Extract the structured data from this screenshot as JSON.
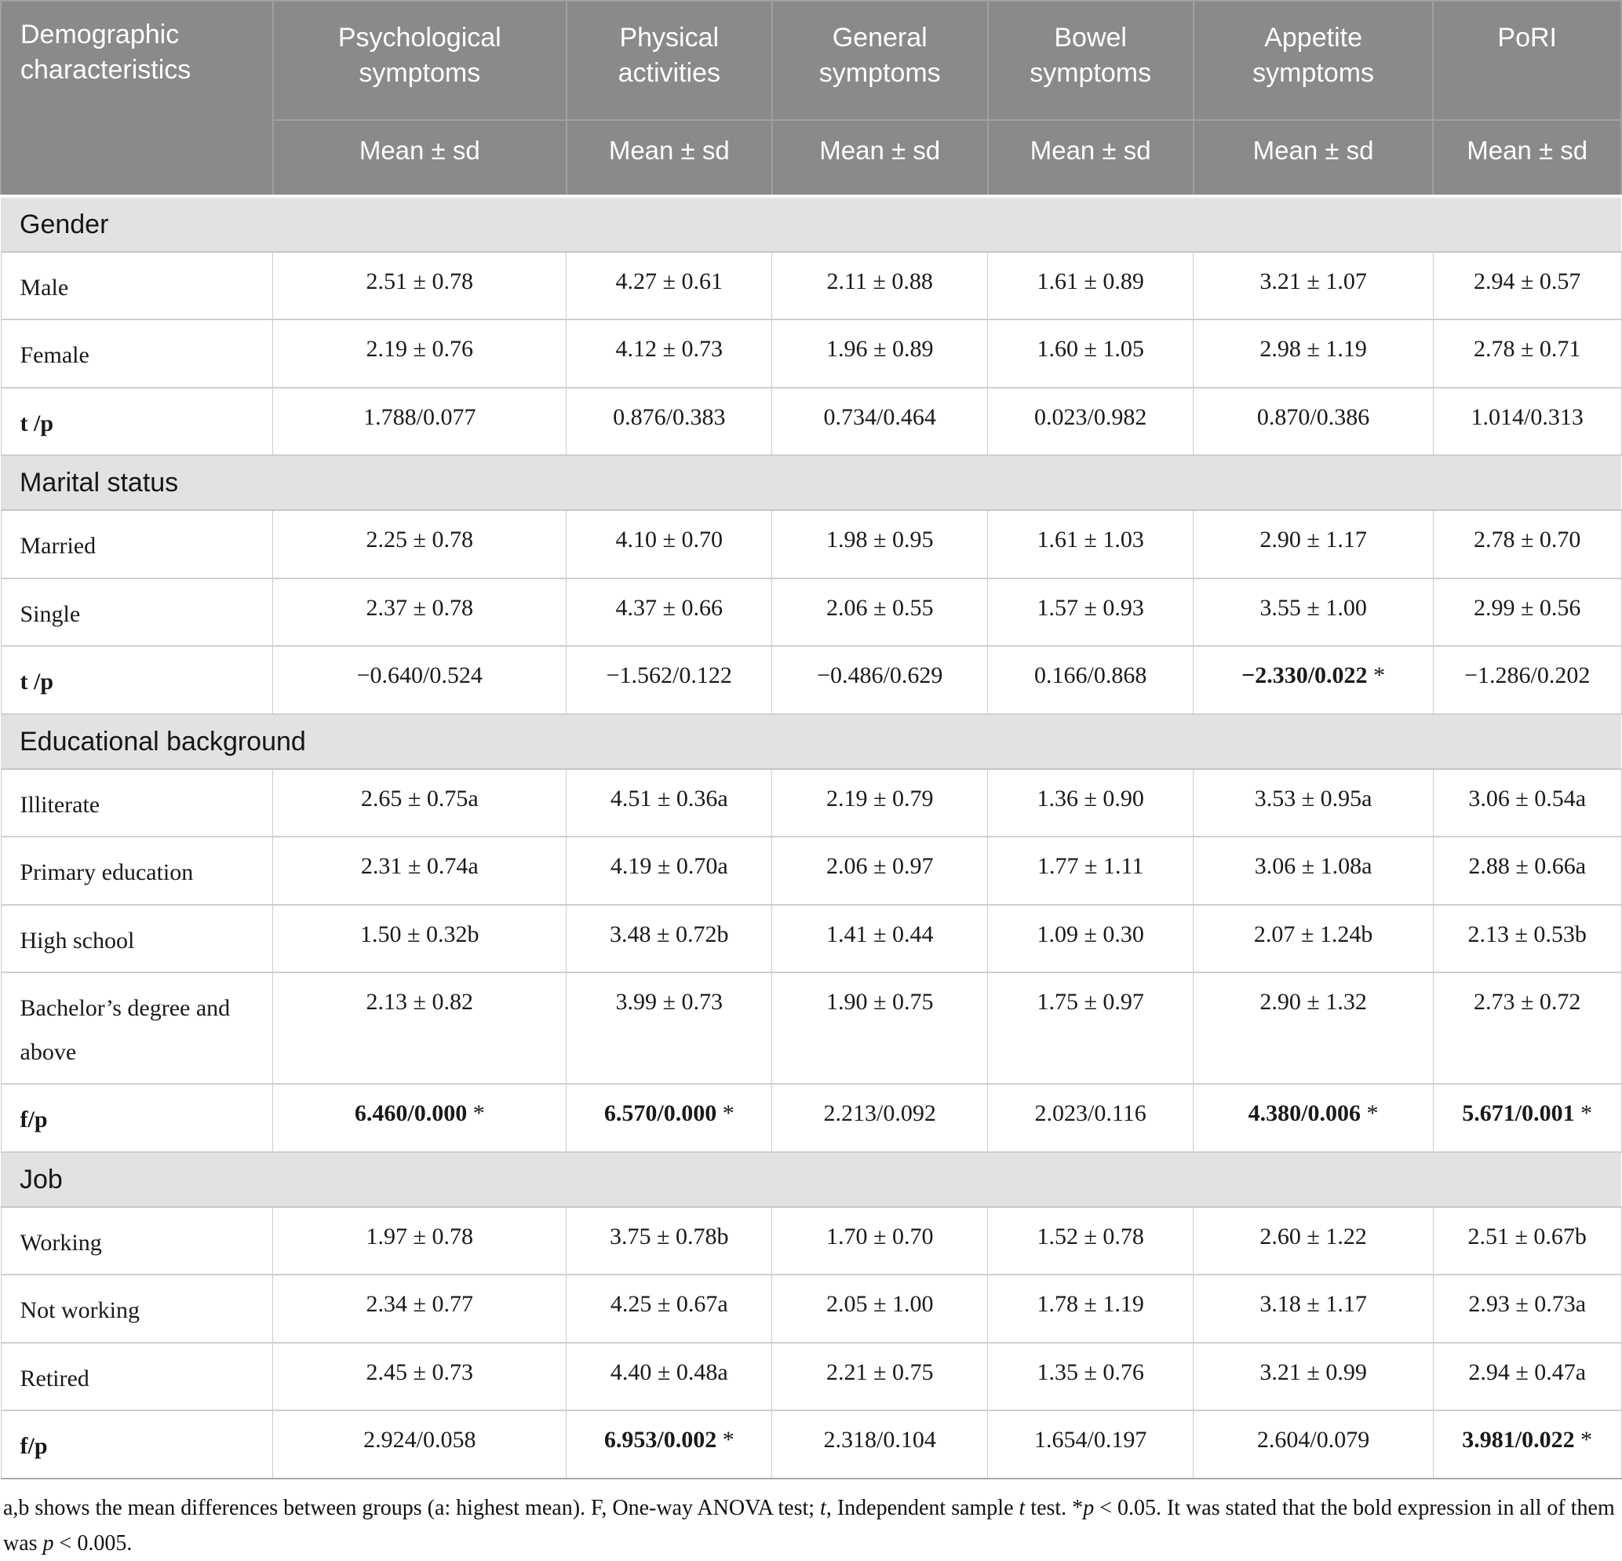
{
  "colors": {
    "header_bg": "#8a8a8a",
    "header_text": "#ffffff",
    "section_bg": "#e2e2e1"
  },
  "header": {
    "row_label": "Demographic characteristics",
    "columns": [
      "Psychological symptoms",
      "Physical activities",
      "General symptoms",
      "Bowel symptoms",
      "Appetite symptoms",
      "PoRI"
    ],
    "mean_sd": "Mean ± sd"
  },
  "sections": [
    {
      "title": "Gender",
      "rows": [
        {
          "label": "Male",
          "values": [
            "2.51 ± 0.78",
            "4.27 ± 0.61",
            "2.11 ± 0.88",
            "1.61 ± 0.89",
            "3.21 ± 1.07",
            "2.94 ± 0.57"
          ]
        },
        {
          "label": "Female",
          "values": [
            "2.19 ± 0.76",
            "4.12 ± 0.73",
            "1.96 ± 0.89",
            "1.60 ± 1.05",
            "2.98 ± 1.19",
            "2.78 ± 0.71"
          ]
        },
        {
          "label": "t /p",
          "label_bold": true,
          "values": [
            "1.788/0.077",
            "0.876/0.383",
            "0.734/0.464",
            "0.023/0.982",
            "0.870/0.386",
            "1.014/0.313"
          ]
        }
      ]
    },
    {
      "title": "Marital status",
      "rows": [
        {
          "label": "Married",
          "values": [
            "2.25 ± 0.78",
            "4.10 ± 0.70",
            "1.98 ± 0.95",
            "1.61 ± 1.03",
            "2.90 ± 1.17",
            "2.78 ± 0.70"
          ]
        },
        {
          "label": "Single",
          "values": [
            "2.37 ± 0.78",
            "4.37 ± 0.66",
            "2.06 ± 0.55",
            "1.57 ± 0.93",
            "3.55 ± 1.00",
            "2.99 ± 0.56"
          ]
        },
        {
          "label": "t /p",
          "label_bold": true,
          "values": [
            "−0.640/0.524",
            "−1.562/0.122",
            "−0.486/0.629",
            "0.166/0.868",
            {
              "text": "−2.330/0.022",
              "bold": true,
              "star": true
            },
            "−1.286/0.202"
          ]
        }
      ]
    },
    {
      "title": "Educational background",
      "rows": [
        {
          "label": "Illiterate",
          "values": [
            "2.65 ± 0.75a",
            "4.51 ± 0.36a",
            "2.19 ± 0.79",
            "1.36 ± 0.90",
            "3.53 ± 0.95a",
            "3.06 ± 0.54a"
          ]
        },
        {
          "label": "Primary education",
          "values": [
            "2.31 ± 0.74a",
            "4.19 ± 0.70a",
            "2.06 ± 0.97",
            "1.77 ± 1.11",
            "3.06 ± 1.08a",
            "2.88 ± 0.66a"
          ]
        },
        {
          "label": "High school",
          "values": [
            "1.50 ± 0.32b",
            "3.48 ± 0.72b",
            "1.41 ± 0.44",
            "1.09 ± 0.30",
            "2.07 ± 1.24b",
            "2.13 ± 0.53b"
          ]
        },
        {
          "label": "Bachelor’s degree and above",
          "values": [
            "2.13 ± 0.82",
            "3.99 ± 0.73",
            "1.90 ± 0.75",
            "1.75 ± 0.97",
            "2.90 ± 1.32",
            "2.73 ± 0.72"
          ]
        },
        {
          "label": "f/p",
          "label_bold": true,
          "values": [
            {
              "text": "6.460/0.000",
              "bold": true,
              "star": true
            },
            {
              "text": "6.570/0.000",
              "bold": true,
              "star": true
            },
            "2.213/0.092",
            "2.023/0.116",
            {
              "text": "4.380/0.006",
              "bold": true,
              "star": true
            },
            {
              "text": "5.671/0.001",
              "bold": true,
              "star": true
            }
          ]
        }
      ]
    },
    {
      "title": "Job",
      "rows": [
        {
          "label": "Working",
          "values": [
            "1.97 ± 0.78",
            "3.75 ± 0.78b",
            "1.70 ± 0.70",
            "1.52 ± 0.78",
            "2.60 ± 1.22",
            "2.51 ± 0.67b"
          ]
        },
        {
          "label": "Not working",
          "values": [
            "2.34 ± 0.77",
            "4.25 ± 0.67a",
            "2.05 ± 1.00",
            "1.78 ± 1.19",
            "3.18 ± 1.17",
            "2.93 ± 0.73a"
          ]
        },
        {
          "label": "Retired",
          "values": [
            "2.45 ± 0.73",
            "4.40 ± 0.48a",
            "2.21 ± 0.75",
            "1.35 ± 0.76",
            "3.21 ± 0.99",
            "2.94 ± 0.47a"
          ]
        },
        {
          "label": "f/p",
          "label_bold": true,
          "values": [
            "2.924/0.058",
            {
              "text": "6.953/0.002",
              "bold": true,
              "star": true
            },
            "2.318/0.104",
            "1.654/0.197",
            "2.604/0.079",
            {
              "text": "3.981/0.022",
              "bold": true,
              "star": true
            }
          ]
        }
      ]
    }
  ],
  "footnote": {
    "segments": [
      {
        "text": "a,b shows the mean differences between groups (a: highest mean). F, One-way ANOVA test; "
      },
      {
        "text": "t",
        "italic": true
      },
      {
        "text": ", Independent sample "
      },
      {
        "text": "t",
        "italic": true
      },
      {
        "text": " test. *"
      },
      {
        "text": "p",
        "italic": true
      },
      {
        "text": " < 0.05. It was stated that the bold expression in all of them was "
      },
      {
        "text": "p",
        "italic": true
      },
      {
        "text": " < 0.005."
      }
    ]
  }
}
